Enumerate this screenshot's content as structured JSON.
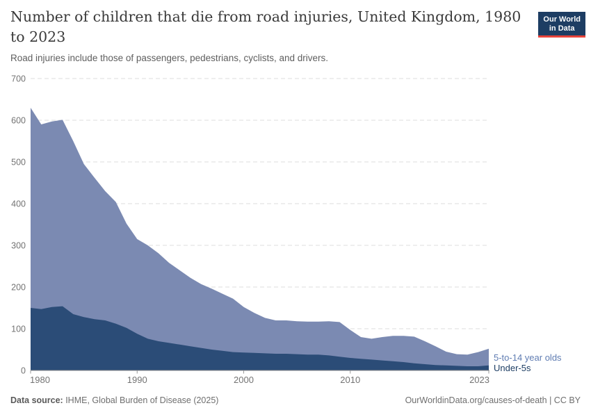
{
  "header": {
    "title": "Number of children that die from road injuries, United Kingdom, 1980 to 2023",
    "subtitle": "Road injuries include those of passengers, pedestrians, cyclists, and drivers.",
    "logo": {
      "line1": "Our World",
      "line2": "in Data"
    }
  },
  "chart_data": {
    "type": "area",
    "stacked": true,
    "title": "Number of children that die from road injuries, United Kingdom, 1980 to 2023",
    "xlabel": "",
    "ylabel": "",
    "x": [
      1980,
      1981,
      1982,
      1983,
      1984,
      1985,
      1986,
      1987,
      1988,
      1989,
      1990,
      1991,
      1992,
      1993,
      1994,
      1995,
      1996,
      1997,
      1998,
      1999,
      2000,
      2001,
      2002,
      2003,
      2004,
      2005,
      2006,
      2007,
      2008,
      2009,
      2010,
      2011,
      2012,
      2013,
      2014,
      2015,
      2016,
      2017,
      2018,
      2019,
      2020,
      2021,
      2022,
      2023
    ],
    "series": [
      {
        "name": "Under-5s",
        "fill_color": "#2b4c77",
        "label_color": "#1d3d63",
        "values": [
          150,
          147,
          152,
          154,
          135,
          128,
          123,
          120,
          112,
          102,
          88,
          76,
          70,
          66,
          62,
          58,
          54,
          50,
          47,
          44,
          43,
          42,
          41,
          40,
          40,
          39,
          38,
          38,
          36,
          33,
          30,
          28,
          26,
          24,
          22,
          20,
          17,
          15,
          13,
          12,
          11,
          10,
          10,
          12
        ]
      },
      {
        "name": "5-to-14 year olds",
        "fill_color": "#7b8ab2",
        "label_color": "#5f7cb2",
        "values": [
          480,
          443,
          445,
          447,
          415,
          367,
          339,
          310,
          292,
          250,
          227,
          224,
          211,
          192,
          178,
          164,
          153,
          146,
          137,
          128,
          109,
          96,
          85,
          80,
          80,
          79,
          79,
          79,
          82,
          83,
          67,
          52,
          50,
          56,
          61,
          63,
          64,
          55,
          45,
          33,
          28,
          28,
          34,
          40
        ]
      }
    ],
    "ylim": [
      0,
      700
    ],
    "yticks": [
      0,
      100,
      200,
      300,
      400,
      500,
      600,
      700
    ],
    "xticks": [
      1980,
      1990,
      2000,
      2010,
      2023
    ],
    "grid": "horizontal dashed",
    "legend_position": "right-edge-labels",
    "colors": {
      "gridline": "#dcdcdc",
      "axis_line": "#8c8c8c",
      "tick_label": "#737373"
    }
  },
  "footer": {
    "datasource_label": "Data source:",
    "datasource_value": " IHME, Global Burden of Disease (2025)",
    "credit": "OurWorldinData.org/causes-of-death | CC BY"
  }
}
